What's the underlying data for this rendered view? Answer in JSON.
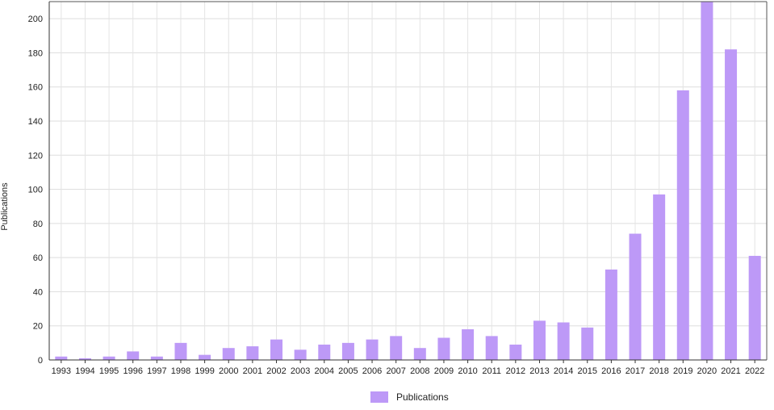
{
  "chart_data": {
    "type": "bar",
    "ylabel": "Publications",
    "xlabel": "",
    "ylim": [
      0,
      210
    ],
    "yticks": [
      0,
      20,
      40,
      60,
      80,
      100,
      120,
      140,
      160,
      180,
      200
    ],
    "grid": true,
    "legend_position": "bottom-center",
    "categories": [
      "1993",
      "1994",
      "1995",
      "1996",
      "1997",
      "1998",
      "1999",
      "2000",
      "2001",
      "2002",
      "2003",
      "2004",
      "2005",
      "2006",
      "2007",
      "2008",
      "2009",
      "2010",
      "2011",
      "2012",
      "2013",
      "2014",
      "2015",
      "2016",
      "2017",
      "2018",
      "2019",
      "2020",
      "2021",
      "2022"
    ],
    "series": [
      {
        "name": "Publications",
        "color": "#bd99f7",
        "values": [
          2,
          1,
          2,
          5,
          2,
          10,
          3,
          7,
          8,
          12,
          6,
          9,
          10,
          12,
          14,
          7,
          13,
          18,
          14,
          9,
          23,
          22,
          19,
          53,
          74,
          97,
          158,
          210,
          182,
          61
        ]
      }
    ]
  }
}
